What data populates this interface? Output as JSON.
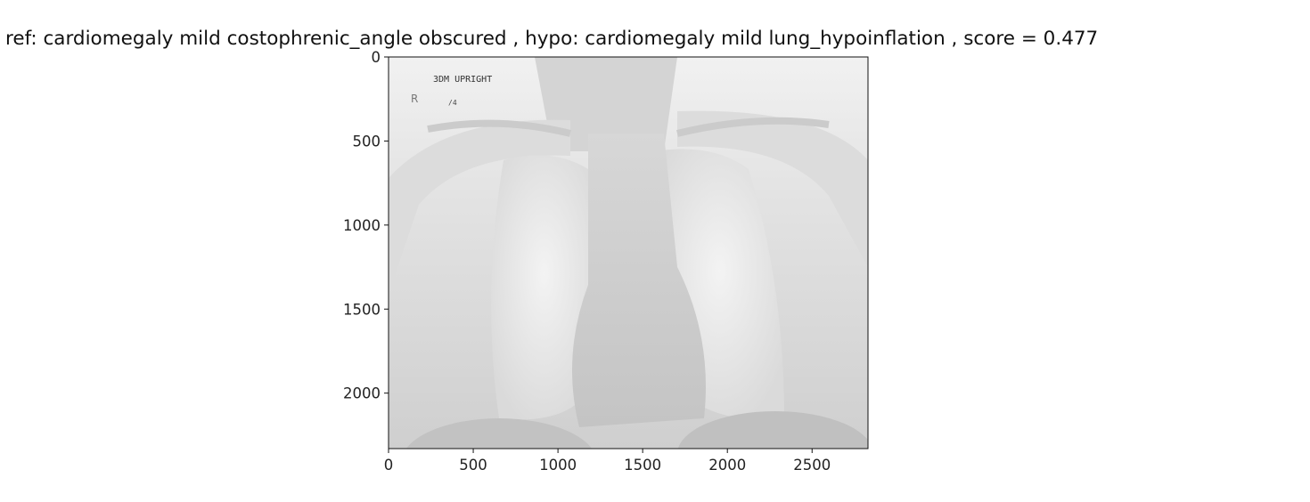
{
  "figure": {
    "title": "ref:  cardiomegaly mild costophrenic_angle obscured , hypo: cardiomegaly mild lung_hypoinflation , score = 0.477"
  },
  "image": {
    "overlay_text_1": "3DM UPRIGHT",
    "overlay_text_2": "R",
    "overlay_text_3": "/4"
  },
  "axes": {
    "xlim": [
      0,
      2830
    ],
    "ylim": [
      2330,
      0
    ],
    "x_ticks": [
      "0",
      "500",
      "1000",
      "1500",
      "2000",
      "2500"
    ],
    "y_ticks": [
      "0",
      "500",
      "1000",
      "1500",
      "2000"
    ]
  }
}
